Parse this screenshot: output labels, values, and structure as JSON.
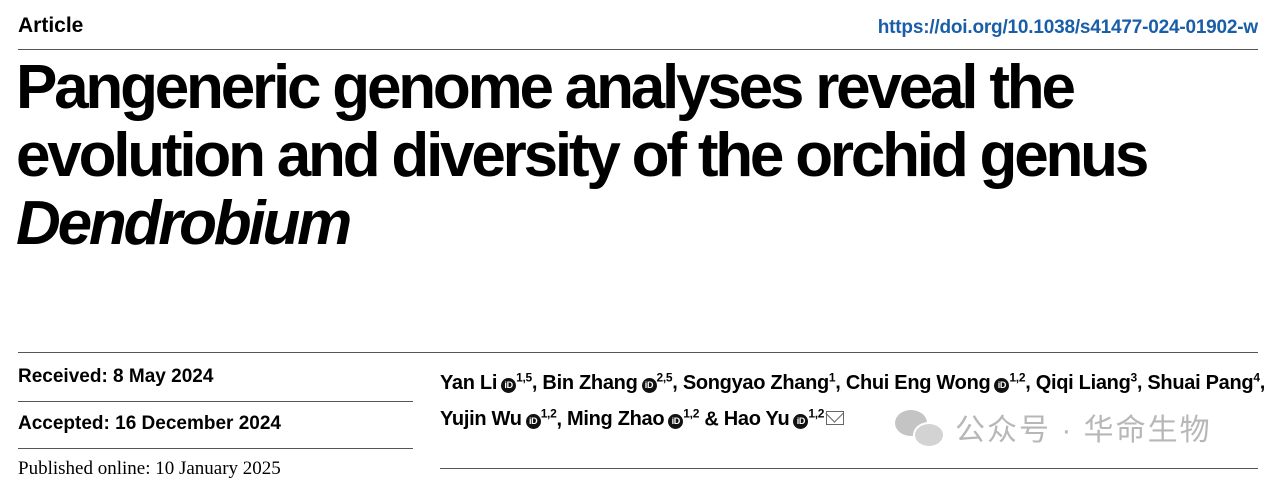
{
  "header": {
    "article_label": "Article",
    "doi": "https://doi.org/10.1038/s41477-024-01902-w"
  },
  "title": {
    "line1": "Pangeneric genome analyses reveal the",
    "line2": "evolution and diversity of the orchid genus",
    "genus": "Dendrobium"
  },
  "dates": {
    "received": "Received: 8 May 2024",
    "accepted": "Accepted: 16 December 2024",
    "published": "Published online: 10 January 2025"
  },
  "authors": [
    {
      "name": "Yan Li",
      "orcid": true,
      "aff": "1,5"
    },
    {
      "name": "Bin Zhang",
      "orcid": true,
      "aff": "2,5"
    },
    {
      "name": "Songyao Zhang",
      "orcid": false,
      "aff": "1"
    },
    {
      "name": "Chui Eng Wong",
      "orcid": true,
      "aff": "1,2"
    },
    {
      "name": "Qiqi Liang",
      "orcid": false,
      "aff": "3"
    },
    {
      "name": "Shuai Pang",
      "orcid": false,
      "aff": "4"
    },
    {
      "name": "Yujin Wu",
      "orcid": true,
      "aff": "1,2"
    },
    {
      "name": "Ming Zhao",
      "orcid": true,
      "aff": "1,2"
    },
    {
      "name": "Hao Yu",
      "orcid": true,
      "aff": "1,2"
    }
  ],
  "watermark": {
    "text": "公众号 · 华命生物",
    "icon": "wechat-icon"
  }
}
